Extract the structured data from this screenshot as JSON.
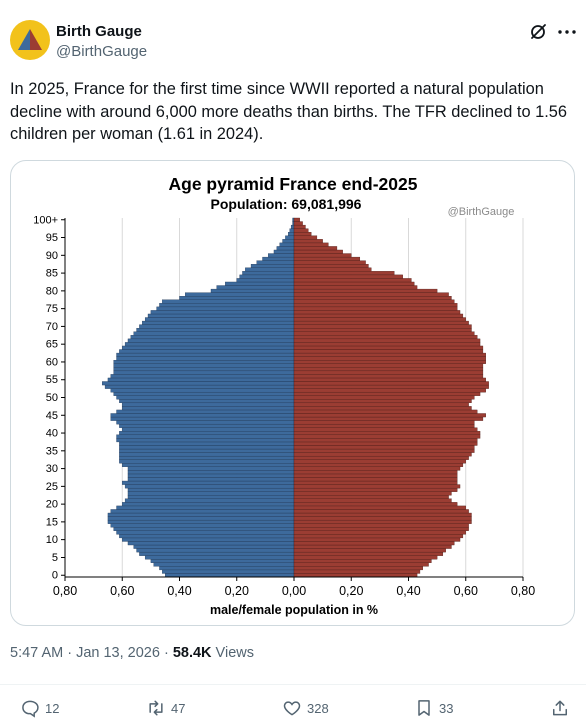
{
  "author": {
    "name": "Birth Gauge",
    "handle": "@BirthGauge"
  },
  "tweet": {
    "text": "In 2025, France for the first time since WWII reported a natural population decline with around 6,000 more deaths than births. The TFR declined to 1.56 children per woman (1.61 in 2024)."
  },
  "meta": {
    "timestamp": "5:47 AM · Jan 13, 2026 · ",
    "views_count": "58.4K",
    "views_label": " Views"
  },
  "actions": {
    "replies": "12",
    "reposts": "47",
    "likes": "328",
    "bookmarks": "33"
  },
  "colors": {
    "male": "#3d6a9c",
    "female": "#9b3d33",
    "brand_yellow": "#f2c21b"
  },
  "chart_data": {
    "type": "bar",
    "orientation": "horizontal-population-pyramid",
    "title": "Age pyramid France end-2025",
    "subtitle": "Population: 69,081,996",
    "watermark": "@BirthGauge",
    "xlabel": "male/female population  in %",
    "xlim": [
      -0.8,
      0.8
    ],
    "xticks": [
      "0,80",
      "0,60",
      "0,40",
      "0,20",
      "0,00",
      "0,20",
      "0,40",
      "0,60",
      "0,80"
    ],
    "yticks": [
      "0",
      "5",
      "10",
      "15",
      "20",
      "25",
      "30",
      "35",
      "40",
      "45",
      "50",
      "55",
      "60",
      "65",
      "70",
      "75",
      "80",
      "85",
      "90",
      "95",
      "100+"
    ],
    "grid": true,
    "ages": [
      0,
      1,
      2,
      3,
      4,
      5,
      6,
      7,
      8,
      9,
      10,
      11,
      12,
      13,
      14,
      15,
      16,
      17,
      18,
      19,
      20,
      21,
      22,
      23,
      24,
      25,
      26,
      27,
      28,
      29,
      30,
      31,
      32,
      33,
      34,
      35,
      36,
      37,
      38,
      39,
      40,
      41,
      42,
      43,
      44,
      45,
      46,
      47,
      48,
      49,
      50,
      51,
      52,
      53,
      54,
      55,
      56,
      57,
      58,
      59,
      60,
      61,
      62,
      63,
      64,
      65,
      66,
      67,
      68,
      69,
      70,
      71,
      72,
      73,
      74,
      75,
      76,
      77,
      78,
      79,
      80,
      81,
      82,
      83,
      84,
      85,
      86,
      87,
      88,
      89,
      90,
      91,
      92,
      93,
      94,
      95,
      96,
      97,
      98,
      99,
      100
    ],
    "series": [
      {
        "name": "male",
        "values": [
          0.45,
          0.46,
          0.47,
          0.49,
          0.5,
          0.52,
          0.54,
          0.55,
          0.56,
          0.58,
          0.6,
          0.61,
          0.62,
          0.63,
          0.64,
          0.65,
          0.65,
          0.65,
          0.64,
          0.62,
          0.6,
          0.59,
          0.58,
          0.58,
          0.58,
          0.59,
          0.6,
          0.58,
          0.58,
          0.58,
          0.58,
          0.6,
          0.61,
          0.61,
          0.61,
          0.61,
          0.61,
          0.61,
          0.62,
          0.62,
          0.61,
          0.6,
          0.61,
          0.62,
          0.64,
          0.64,
          0.62,
          0.6,
          0.6,
          0.61,
          0.62,
          0.63,
          0.64,
          0.66,
          0.67,
          0.65,
          0.64,
          0.63,
          0.63,
          0.63,
          0.63,
          0.62,
          0.62,
          0.61,
          0.6,
          0.59,
          0.58,
          0.57,
          0.56,
          0.55,
          0.54,
          0.53,
          0.52,
          0.51,
          0.5,
          0.48,
          0.47,
          0.46,
          0.4,
          0.38,
          0.29,
          0.27,
          0.24,
          0.2,
          0.19,
          0.18,
          0.17,
          0.15,
          0.13,
          0.11,
          0.09,
          0.07,
          0.06,
          0.05,
          0.04,
          0.03,
          0.02,
          0.015,
          0.01,
          0.005,
          0.005
        ]
      },
      {
        "name": "female",
        "values": [
          0.43,
          0.44,
          0.45,
          0.47,
          0.48,
          0.5,
          0.52,
          0.53,
          0.55,
          0.56,
          0.58,
          0.59,
          0.6,
          0.61,
          0.61,
          0.62,
          0.62,
          0.62,
          0.61,
          0.6,
          0.57,
          0.55,
          0.54,
          0.55,
          0.57,
          0.58,
          0.57,
          0.57,
          0.57,
          0.57,
          0.58,
          0.59,
          0.6,
          0.61,
          0.62,
          0.63,
          0.63,
          0.64,
          0.64,
          0.65,
          0.65,
          0.64,
          0.63,
          0.63,
          0.66,
          0.67,
          0.64,
          0.62,
          0.61,
          0.62,
          0.63,
          0.65,
          0.67,
          0.68,
          0.68,
          0.67,
          0.66,
          0.66,
          0.66,
          0.66,
          0.67,
          0.67,
          0.67,
          0.66,
          0.66,
          0.65,
          0.65,
          0.64,
          0.63,
          0.62,
          0.62,
          0.61,
          0.6,
          0.59,
          0.58,
          0.57,
          0.57,
          0.56,
          0.55,
          0.54,
          0.5,
          0.43,
          0.42,
          0.41,
          0.38,
          0.35,
          0.27,
          0.26,
          0.25,
          0.23,
          0.2,
          0.17,
          0.15,
          0.12,
          0.1,
          0.08,
          0.06,
          0.05,
          0.04,
          0.03,
          0.02
        ]
      }
    ]
  }
}
